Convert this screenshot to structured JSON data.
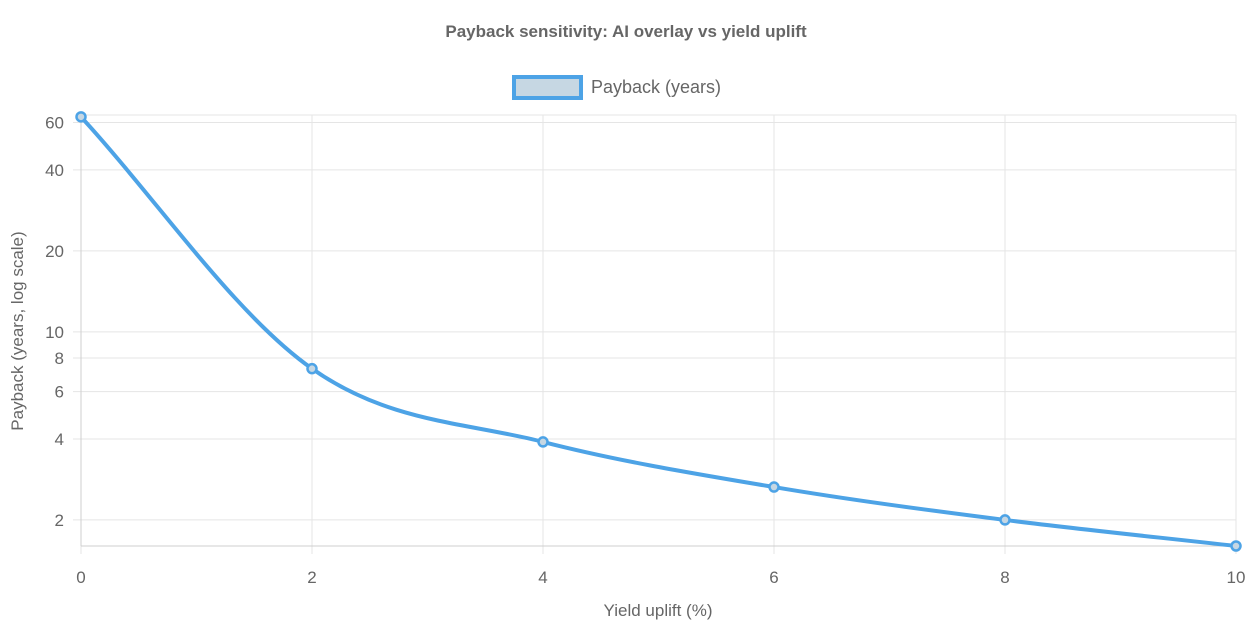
{
  "chart_data": {
    "type": "line",
    "title": "Payback sensitivity: AI overlay vs yield uplift",
    "xlabel": "Yield uplift (%)",
    "ylabel": "Payback (years, log scale)",
    "y_scale": "log",
    "xlim": [
      0,
      10
    ],
    "ylim": [
      1.6,
      64
    ],
    "x_ticks": [
      0,
      2,
      4,
      6,
      8,
      10
    ],
    "y_ticks": [
      2,
      4,
      6,
      8,
      10,
      20,
      40,
      60
    ],
    "grid": true,
    "legend_position": "top-center",
    "series": [
      {
        "name": "Payback (years)",
        "color": "#4da3e6",
        "fill_color": "#c6d7e3",
        "x": [
          0,
          2,
          4,
          6,
          8,
          10
        ],
        "y": [
          63,
          7.3,
          3.9,
          2.65,
          2.0,
          1.6
        ]
      }
    ]
  }
}
